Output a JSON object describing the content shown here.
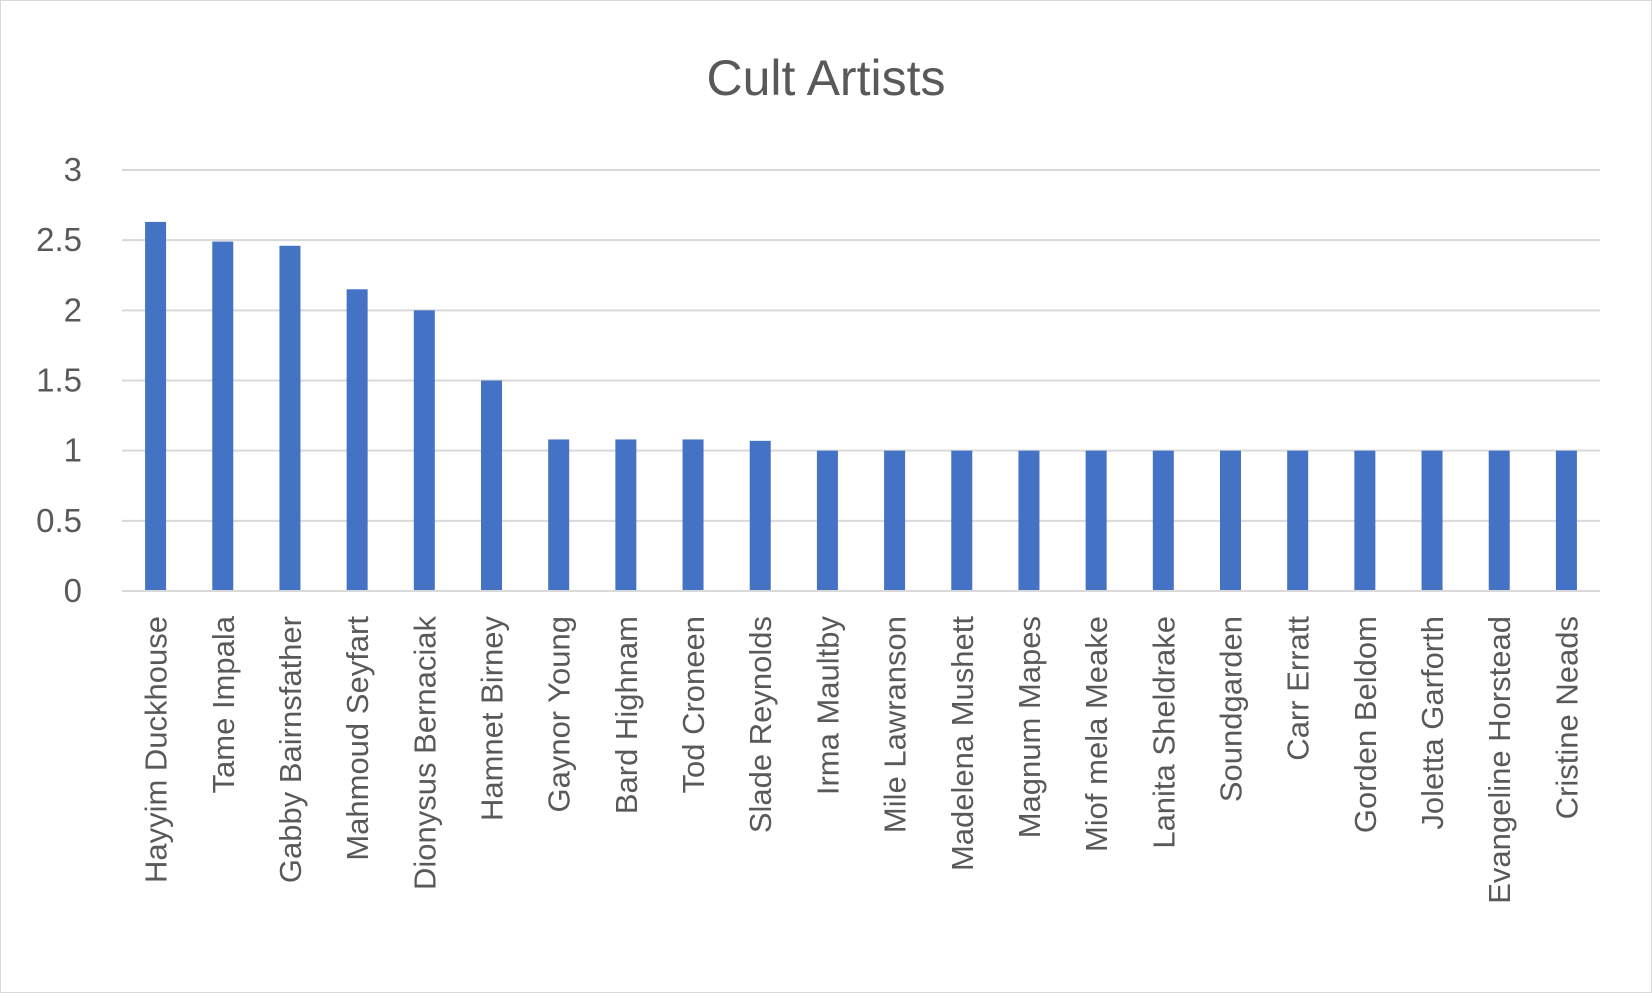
{
  "chart_data": {
    "type": "bar",
    "title": "Cult Artists",
    "xlabel": "",
    "ylabel": "",
    "ylim": [
      0,
      3
    ],
    "yticks": [
      "0",
      "0.5",
      "1",
      "1.5",
      "2",
      "2.5",
      "3"
    ],
    "grid": true,
    "legend": "none",
    "bar_color": "#4472c4",
    "categories": [
      "Hayyim Duckhouse",
      "Tame Impala",
      "Gabby Bairnsfather",
      "Mahmoud Seyfart",
      "Dionysus Bernaciak",
      "Hamnet Birney",
      "Gaynor Young",
      "Bard Highnam",
      "Tod Croneen",
      "Slade Reynolds",
      "Irma Maultby",
      "Mile Lawranson",
      "Madelena Mushett",
      "Magnum Mapes",
      "Miof mela Meake",
      "Lanita Sheldrake",
      "Soundgarden",
      "Carr Erratt",
      "Gorden Beldom",
      "Joletta Garforth",
      "Evangeline Horstead",
      "Cristine Neads"
    ],
    "values": [
      2.63,
      2.49,
      2.46,
      2.15,
      2.0,
      1.5,
      1.08,
      1.08,
      1.08,
      1.07,
      1.0,
      1.0,
      1.0,
      1.0,
      1.0,
      1.0,
      1.0,
      1.0,
      1.0,
      1.0,
      1.0,
      1.0
    ]
  }
}
